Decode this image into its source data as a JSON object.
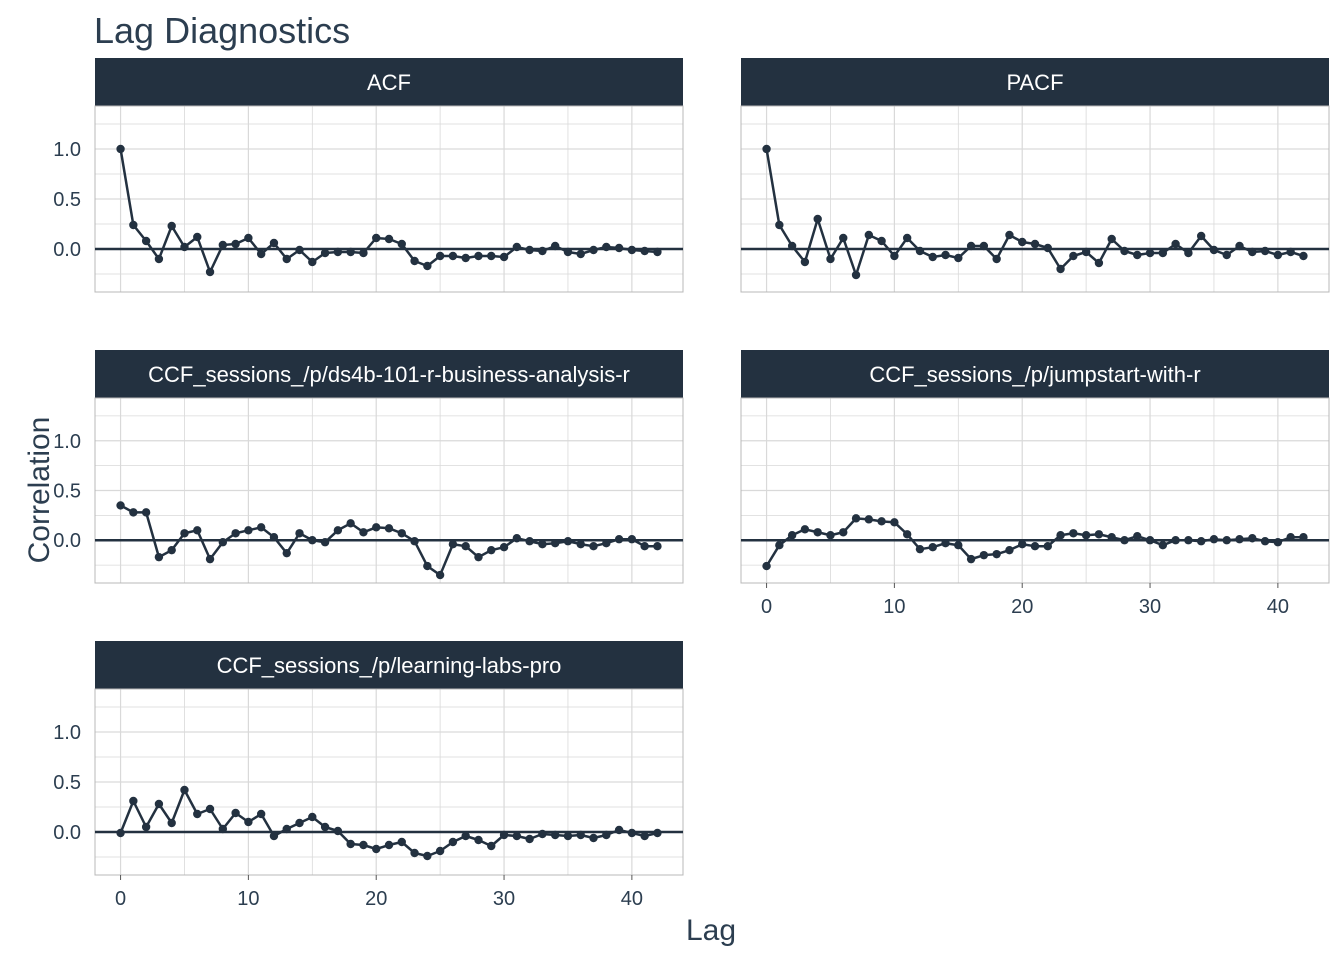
{
  "title": "Lag Diagnostics",
  "xlabel": "Lag",
  "ylabel": "Correlation",
  "colors": {
    "strip_bg": "#233140",
    "line": "#233140",
    "grid": "#d9d9d9",
    "text": "#2c3e50"
  },
  "chart_data": {
    "type": "line",
    "facet_layout": "wrap-2-columns",
    "xlim": [
      -2,
      44
    ],
    "ylim": [
      -0.43,
      1.43
    ],
    "x_ticks": [
      0,
      10,
      20,
      30,
      40
    ],
    "y_ticks": [
      0.0,
      0.5,
      1.0
    ],
    "y_tick_labels": [
      "0.0",
      "0.5",
      "1.0"
    ],
    "x_tick_labels": [
      "0",
      "10",
      "20",
      "30",
      "40"
    ],
    "grid": true,
    "hline": 0,
    "x": [
      0,
      1,
      2,
      3,
      4,
      5,
      6,
      7,
      8,
      9,
      10,
      11,
      12,
      13,
      14,
      15,
      16,
      17,
      18,
      19,
      20,
      21,
      22,
      23,
      24,
      25,
      26,
      27,
      28,
      29,
      30,
      31,
      32,
      33,
      34,
      35,
      36,
      37,
      38,
      39,
      40,
      41,
      42
    ],
    "panels": [
      {
        "name": "ACF",
        "values": [
          1.0,
          0.24,
          0.08,
          -0.1,
          0.23,
          0.02,
          0.12,
          -0.23,
          0.04,
          0.05,
          0.11,
          -0.05,
          0.06,
          -0.1,
          -0.01,
          -0.13,
          -0.04,
          -0.03,
          -0.03,
          -0.04,
          0.11,
          0.1,
          0.05,
          -0.12,
          -0.17,
          -0.07,
          -0.07,
          -0.09,
          -0.07,
          -0.07,
          -0.08,
          0.02,
          -0.01,
          -0.02,
          0.03,
          -0.03,
          -0.05,
          -0.01,
          0.02,
          0.01,
          -0.01,
          -0.02,
          -0.03
        ]
      },
      {
        "name": "PACF",
        "values": [
          1.0,
          0.24,
          0.03,
          -0.13,
          0.3,
          -0.1,
          0.11,
          -0.26,
          0.14,
          0.08,
          -0.07,
          0.11,
          -0.02,
          -0.08,
          -0.06,
          -0.09,
          0.03,
          0.03,
          -0.1,
          0.14,
          0.07,
          0.05,
          0.01,
          -0.2,
          -0.07,
          -0.03,
          -0.14,
          0.1,
          -0.02,
          -0.06,
          -0.04,
          -0.04,
          0.05,
          -0.04,
          0.13,
          -0.01,
          -0.06,
          0.03,
          -0.03,
          -0.02,
          -0.06,
          -0.03,
          -0.07
        ]
      },
      {
        "name": "CCF_sessions_/p/ds4b-101-r-business-analysis-r",
        "values": [
          0.35,
          0.28,
          0.28,
          -0.17,
          -0.1,
          0.07,
          0.1,
          -0.19,
          -0.02,
          0.07,
          0.1,
          0.13,
          0.03,
          -0.13,
          0.07,
          0.0,
          -0.02,
          0.1,
          0.17,
          0.08,
          0.13,
          0.12,
          0.07,
          -0.01,
          -0.26,
          -0.35,
          -0.04,
          -0.06,
          -0.17,
          -0.1,
          -0.07,
          0.02,
          -0.01,
          -0.04,
          -0.03,
          -0.01,
          -0.04,
          -0.06,
          -0.03,
          0.01,
          0.01,
          -0.06,
          -0.06
        ]
      },
      {
        "name": "CCF_sessions_/p/jumpstart-with-r",
        "values": [
          -0.26,
          -0.05,
          0.05,
          0.11,
          0.08,
          0.05,
          0.08,
          0.22,
          0.21,
          0.19,
          0.18,
          0.06,
          -0.09,
          -0.07,
          -0.03,
          -0.05,
          -0.19,
          -0.15,
          -0.14,
          -0.1,
          -0.04,
          -0.06,
          -0.06,
          0.05,
          0.07,
          0.05,
          0.06,
          0.03,
          0.0,
          0.04,
          0.0,
          -0.05,
          0.0,
          0.0,
          -0.01,
          0.01,
          0.0,
          0.01,
          0.02,
          -0.01,
          -0.02,
          0.03,
          0.03
        ]
      },
      {
        "name": "CCF_sessions_/p/learning-labs-pro",
        "values": [
          -0.01,
          0.31,
          0.05,
          0.28,
          0.09,
          0.42,
          0.18,
          0.23,
          0.03,
          0.19,
          0.1,
          0.18,
          -0.04,
          0.03,
          0.09,
          0.15,
          0.05,
          0.01,
          -0.12,
          -0.13,
          -0.17,
          -0.13,
          -0.1,
          -0.21,
          -0.24,
          -0.19,
          -0.1,
          -0.04,
          -0.08,
          -0.14,
          -0.03,
          -0.04,
          -0.07,
          -0.02,
          -0.03,
          -0.04,
          -0.03,
          -0.06,
          -0.03,
          0.02,
          -0.01,
          -0.04,
          -0.01
        ]
      }
    ]
  }
}
